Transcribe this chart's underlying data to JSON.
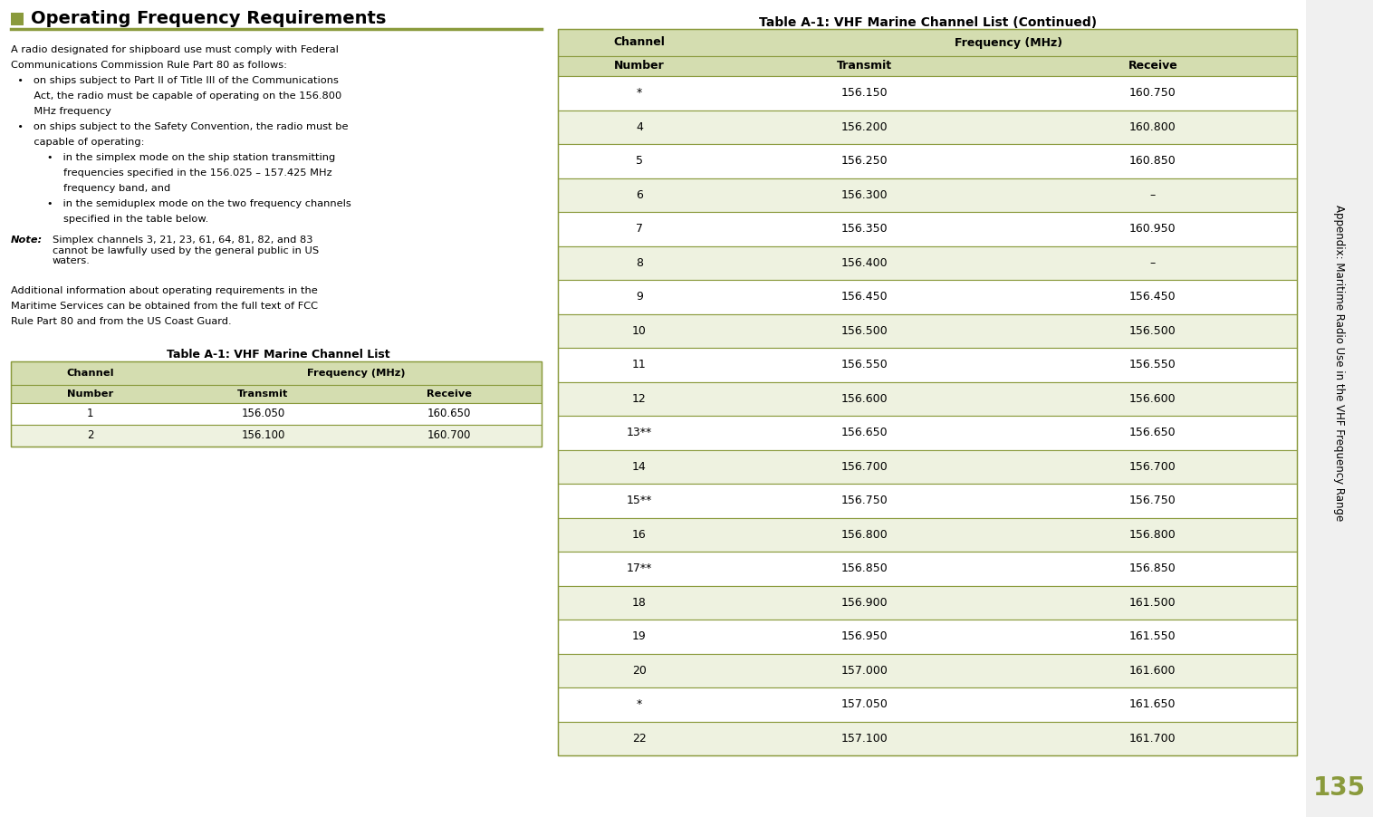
{
  "bg_color": "#ffffff",
  "header_square_color": "#8a9a3c",
  "table_border_color": "#8a9a3c",
  "table_header_bg": "#d4ddb0",
  "table_row_alt": "#eef2e0",
  "page_number": "135",
  "page_num_color": "#8a9a3c",
  "title": "Operating Frequency Requirements",
  "sidebar_text": "Appendix: Maritime Radio Use in the VHF Frequency Range",
  "body_text_lines": [
    "A radio designated for shipboard use must comply with Federal",
    "Communications Commission Rule Part 80 as follows:",
    "  •   on ships subject to Part II of Title III of the Communications",
    "       Act, the radio must be capable of operating on the 156.800",
    "       MHz frequency",
    "  •   on ships subject to the Safety Convention, the radio must be",
    "       capable of operating:",
    "           •   in the simplex mode on the ship station transmitting",
    "                frequencies specified in the 156.025 – 157.425 MHz",
    "                frequency band, and",
    "           •   in the semiduplex mode on the two frequency channels",
    "                specified in the table below."
  ],
  "note_label": "Note:",
  "note_text": "Simplex channels 3, 21, 23, 61, 64, 81, 82, and 83\ncannot be lawfully used by the general public in US\nwaters.",
  "additional_text": "Additional information about operating requirements in the\nMaritime Services can be obtained from the full text of FCC\nRule Part 80 and from the US Coast Guard.",
  "left_table_title": "Table A-1: VHF Marine Channel List",
  "right_table_title": "Table A-1: VHF Marine Channel List (Continued)",
  "left_table_data": [
    [
      "1",
      "156.050",
      "160.650"
    ],
    [
      "2",
      "156.100",
      "160.700"
    ]
  ],
  "right_table_data": [
    [
      "*",
      "156.150",
      "160.750"
    ],
    [
      "4",
      "156.200",
      "160.800"
    ],
    [
      "5",
      "156.250",
      "160.850"
    ],
    [
      "6",
      "156.300",
      "–"
    ],
    [
      "7",
      "156.350",
      "160.950"
    ],
    [
      "8",
      "156.400",
      "–"
    ],
    [
      "9",
      "156.450",
      "156.450"
    ],
    [
      "10",
      "156.500",
      "156.500"
    ],
    [
      "11",
      "156.550",
      "156.550"
    ],
    [
      "12",
      "156.600",
      "156.600"
    ],
    [
      "13**",
      "156.650",
      "156.650"
    ],
    [
      "14",
      "156.700",
      "156.700"
    ],
    [
      "15**",
      "156.750",
      "156.750"
    ],
    [
      "16",
      "156.800",
      "156.800"
    ],
    [
      "17**",
      "156.850",
      "156.850"
    ],
    [
      "18",
      "156.900",
      "161.500"
    ],
    [
      "19",
      "156.950",
      "161.550"
    ],
    [
      "20",
      "157.000",
      "161.600"
    ],
    [
      "*",
      "157.050",
      "161.650"
    ],
    [
      "22",
      "157.100",
      "161.700"
    ]
  ]
}
